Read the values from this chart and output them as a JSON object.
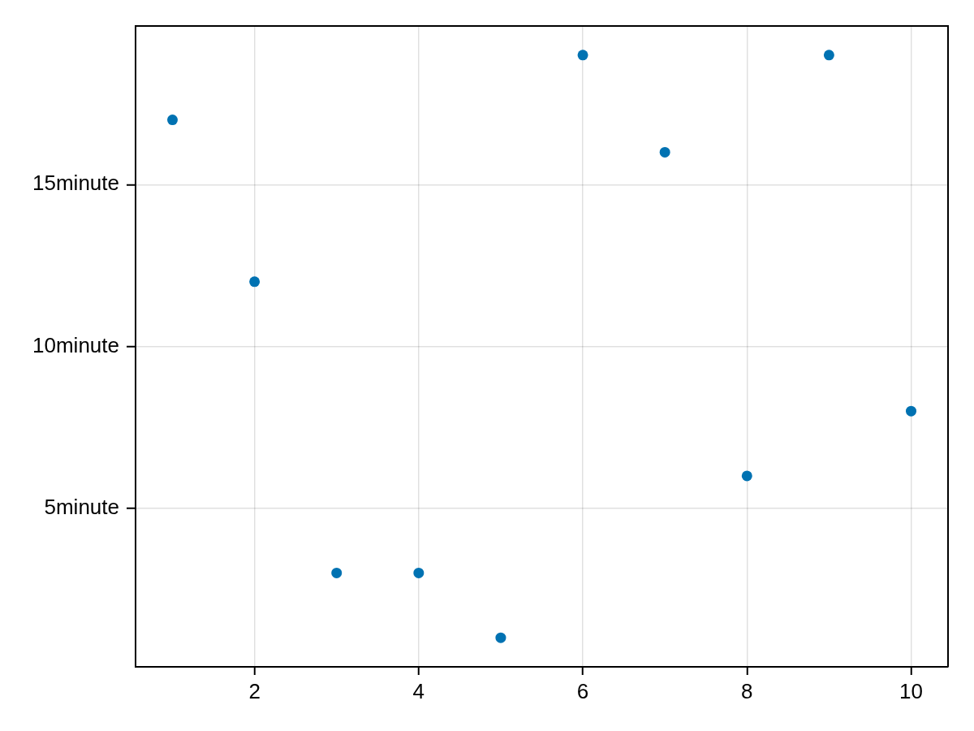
{
  "chart_data": {
    "type": "scatter",
    "x": [
      1,
      2,
      3,
      4,
      5,
      6,
      7,
      8,
      9,
      10
    ],
    "values": [
      17,
      12,
      3,
      3,
      1,
      19,
      16,
      6,
      19,
      8
    ],
    "color": "#0072b2",
    "xlim": [
      0.55,
      10.45
    ],
    "ylim": [
      0.1,
      19.9
    ],
    "xticks": [
      2,
      4,
      6,
      8,
      10
    ],
    "yticks": [
      {
        "value": 5,
        "label": "5minute"
      },
      {
        "value": 10,
        "label": "10minute"
      },
      {
        "value": 15,
        "label": "15minute"
      }
    ],
    "grid": true,
    "marker": "circle"
  }
}
